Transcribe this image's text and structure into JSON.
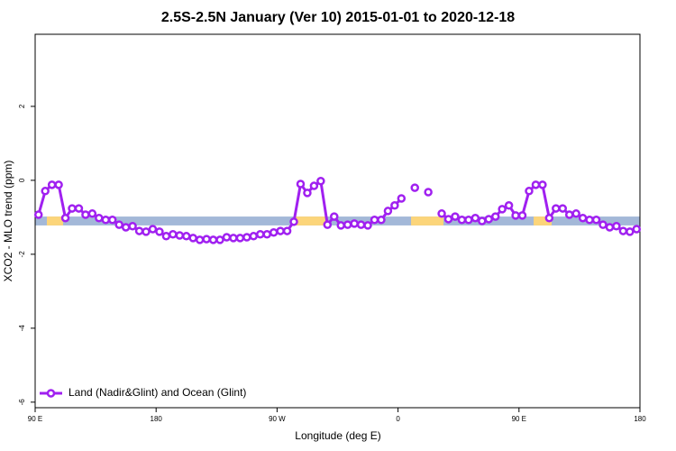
{
  "chart_data": {
    "type": "line",
    "title": "2.5S-2.5N January (Ver 10)   2015-01-01 to 2020-12-18",
    "x_label": "Longitude (deg E)",
    "y_label": "XCO2 - MLO trend (ppm)",
    "xlim": [
      90,
      540
    ],
    "ylim": [
      -6.15,
      3.95
    ],
    "xticks": [
      {
        "value": 90,
        "label": "90 E"
      },
      180,
      {
        "value": 270,
        "label": "90 W"
      },
      {
        "value": 360,
        "label": "0"
      },
      {
        "value": 450,
        "label": "90 E"
      },
      {
        "value": 540,
        "label": "180"
      }
    ],
    "yticks": [
      -6,
      -4,
      -2,
      0,
      2
    ],
    "legend": "bottom-left",
    "band": {
      "ylim": [
        -1.22,
        -0.98
      ],
      "ocean_color": "#a3b8d8",
      "land_color": "#fcd57a",
      "land_segments": [
        [
          98.7,
          110.8
        ],
        [
          283.8,
          306.6
        ],
        [
          369.7,
          393.8
        ],
        [
          460.9,
          474.3
        ]
      ]
    },
    "x": [
      92.5,
      97.5,
      102.5,
      107.5,
      112.5,
      117.5,
      122.5,
      127.5,
      132.5,
      137.5,
      142.5,
      147.5,
      152.5,
      157.5,
      162.5,
      167.5,
      172.5,
      177.5,
      182.5,
      187.5,
      192.5,
      197.5,
      202.5,
      207.5,
      212.5,
      217.5,
      222.5,
      227.5,
      232.5,
      237.5,
      242.5,
      247.5,
      252.5,
      257.5,
      262.5,
      267.5,
      272.5,
      277.5,
      282.5,
      287.5,
      292.5,
      297.5,
      302.5,
      307.5,
      312.5,
      317.5,
      322.5,
      327.5,
      332.5,
      337.5,
      342.5,
      347.5,
      352.5,
      357.5,
      362.5,
      367.5,
      372.5,
      377.5,
      382.5,
      387.5,
      392.5,
      397.5,
      402.5,
      407.5,
      412.5,
      417.5,
      422.5,
      427.5,
      432.5,
      437.5,
      442.5,
      447.5,
      452.5,
      457.5,
      462.5,
      467.5,
      472.5,
      477.5,
      482.5,
      487.5,
      492.5,
      497.5,
      502.5,
      507.5,
      512.5,
      517.5,
      522.5,
      527.5,
      532.5,
      537.5
    ],
    "series": [
      {
        "name": "Land (Nadir&Glint) and Ocean (Glint)",
        "color": "#a020f0",
        "values": [
          -0.93,
          -0.29,
          -0.12,
          -0.12,
          -1.02,
          -0.76,
          -0.76,
          -0.93,
          -0.9,
          -1.02,
          -1.07,
          -1.07,
          -1.2,
          -1.27,
          -1.24,
          -1.37,
          -1.39,
          -1.32,
          -1.39,
          -1.51,
          -1.46,
          -1.49,
          -1.51,
          -1.56,
          -1.61,
          -1.59,
          -1.61,
          -1.61,
          -1.54,
          -1.56,
          -1.56,
          -1.54,
          -1.51,
          -1.46,
          -1.46,
          -1.41,
          -1.37,
          -1.37,
          -1.12,
          -0.1,
          -0.34,
          -0.15,
          -0.02,
          -1.2,
          -0.98,
          -1.22,
          -1.2,
          -1.17,
          -1.2,
          -1.22,
          -1.07,
          -1.07,
          -0.83,
          -0.68,
          -0.49,
          null,
          -0.2,
          null,
          -0.32,
          null,
          -0.9,
          -1.05,
          -0.98,
          -1.07,
          -1.07,
          -1.02,
          -1.1,
          -1.05,
          -0.98,
          -0.78,
          -0.68,
          -0.95,
          -0.95,
          -0.29,
          -0.12,
          -0.12,
          -1.02,
          -0.76,
          -0.76,
          -0.93,
          -0.9,
          -1.02,
          -1.07,
          -1.07,
          -1.2,
          -1.27,
          -1.24,
          -1.37,
          -1.39,
          -1.32
        ]
      }
    ]
  }
}
